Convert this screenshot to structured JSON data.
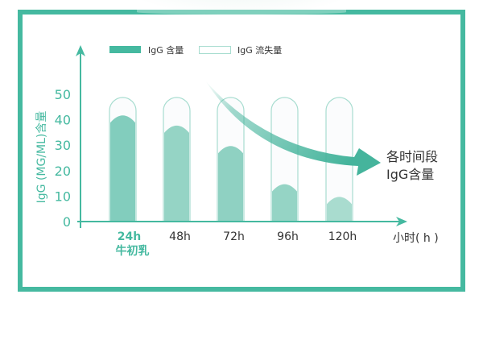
{
  "chart_data": {
    "type": "bar",
    "categories": [
      "24h",
      "48h",
      "72h",
      "96h",
      "120h"
    ],
    "category_sublabel": {
      "24h": "牛初乳"
    },
    "series": [
      {
        "name": "IgG 含量",
        "values": [
          42,
          38,
          30,
          15,
          10
        ]
      },
      {
        "name": "IgG 流失量",
        "values": [
          8,
          12,
          20,
          35,
          40
        ]
      }
    ],
    "capacity": 50,
    "ylabel": "IgG (MG/ML)含量",
    "xlabel": "小时( h )",
    "yticks": [
      0,
      10,
      20,
      30,
      40,
      50
    ],
    "ylim": [
      0,
      50
    ],
    "legend": "top",
    "annotation": [
      "各时间段",
      "IgG含量"
    ],
    "grid": false,
    "colors": {
      "axis": "#45b9a0",
      "fill": [
        "#82cdbd",
        "#95d4c5",
        "#8fd1c2",
        "#95d4c5",
        "#a9dccf"
      ],
      "outline": "#a8ddd0",
      "arrow": "#45b49c"
    }
  }
}
